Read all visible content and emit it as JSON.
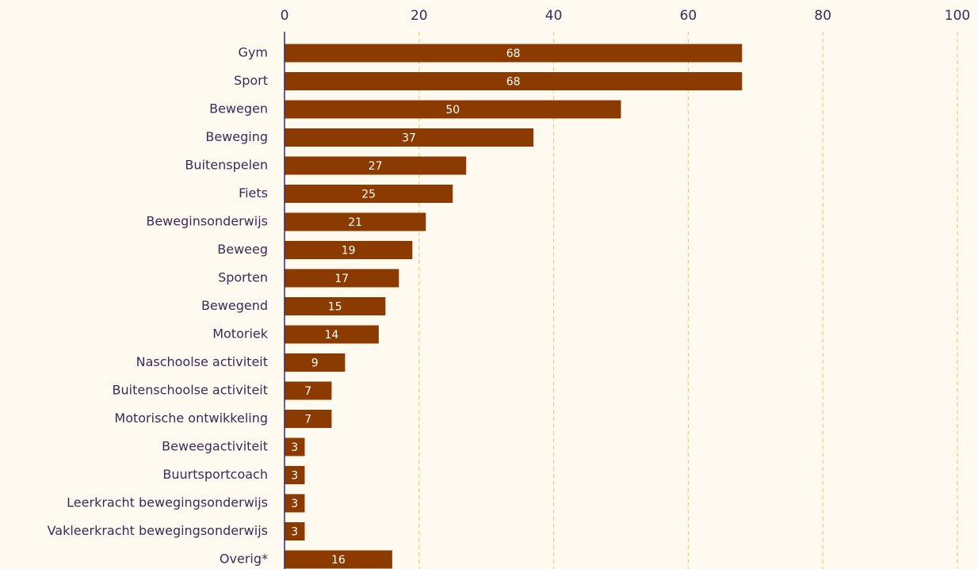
{
  "chart_data": {
    "type": "bar",
    "orientation": "horizontal",
    "categories": [
      "Gym",
      "Sport",
      "Bewegen",
      "Beweging",
      "Buitenspelen",
      "Fiets",
      "Beweginsonderwijs",
      "Beweeg",
      "Sporten",
      "Bewegend",
      "Motoriek",
      "Naschoolse activiteit",
      "Buitenschoolse activiteit",
      "Motorische ontwikkeling",
      "Beweegactiviteit",
      "Buurtsportcoach",
      "Leerkracht bewegingsonderwijs",
      "Vakleerkracht bewegingsonderwijs",
      "Overig*"
    ],
    "values": [
      68,
      68,
      50,
      37,
      27,
      25,
      21,
      19,
      17,
      15,
      14,
      9,
      7,
      7,
      3,
      3,
      3,
      3,
      16
    ],
    "color": "#8b3a00",
    "xlim": [
      0,
      100
    ],
    "xticks": [
      0,
      20,
      40,
      60,
      80,
      100
    ],
    "grid": true
  }
}
